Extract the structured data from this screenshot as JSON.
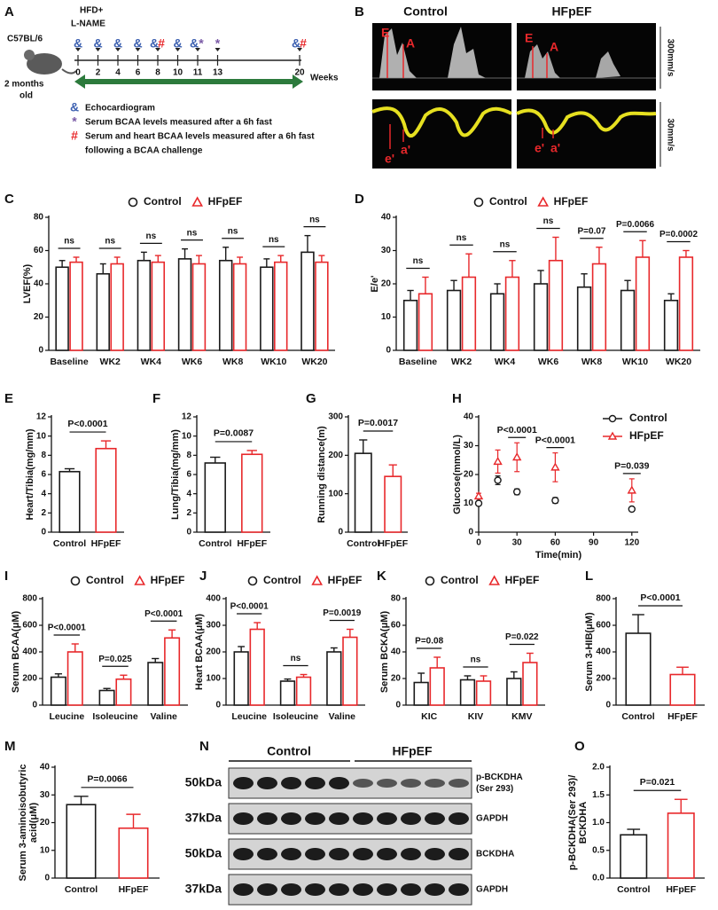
{
  "panels": {
    "A": {
      "label": "A",
      "treatment": [
        "HFD+",
        "L-NAME"
      ],
      "strain": "C57BL/6",
      "age": [
        "2 months",
        "old"
      ],
      "weeks": [
        0,
        2,
        4,
        6,
        8,
        10,
        11,
        13,
        20
      ],
      "axis_label": "Weeks",
      "timeline_symbols": [
        [
          "&"
        ],
        [
          "&"
        ],
        [
          "&"
        ],
        [
          "&"
        ],
        [
          "&",
          "#"
        ],
        [
          "&"
        ],
        [
          "&",
          "*"
        ],
        [
          "*"
        ],
        [
          "&",
          "#"
        ]
      ],
      "symbol_colors": {
        "&": "#3b5fb0",
        "*": "#7a5aa6",
        "#": "#e8282b"
      },
      "legend": [
        {
          "symbol": "&",
          "text": [
            "Echocardiogram"
          ]
        },
        {
          "symbol": "*",
          "text": [
            "Serum BCAA levels measured after a 6h fast"
          ]
        },
        {
          "symbol": "#",
          "text": [
            "Serum and heart BCAA levels measured after a 6h fast",
            "following a BCAA challenge"
          ]
        }
      ]
    },
    "B": {
      "label": "B",
      "columns": [
        "Control",
        "HFpEF"
      ],
      "scales": [
        "300mm/s",
        "30mm/s"
      ],
      "top_labels": [
        "E",
        "A"
      ],
      "bottom_labels": [
        "e'",
        "a'"
      ]
    },
    "N": {
      "label": "N",
      "groups": [
        "Control",
        "HFpEF"
      ],
      "rows": [
        {
          "size": "50kDa",
          "name": [
            "p-BCKDHA",
            "(Ser 293)"
          ]
        },
        {
          "size": "37kDa",
          "name": [
            "GAPDH"
          ]
        },
        {
          "size": "50kDa",
          "name": [
            "BCKDHA"
          ]
        },
        {
          "size": "37kDa",
          "name": [
            "GAPDH"
          ]
        }
      ]
    }
  },
  "chart_data": [
    {
      "type": "bar",
      "label": "C",
      "ylabel": "LVEF(%)",
      "legend": "top",
      "categories": [
        "Baseline",
        "WK2",
        "WK4",
        "WK6",
        "WK8",
        "WK10",
        "WK20"
      ],
      "series": [
        {
          "name": "Control",
          "color": "#1a1a1a",
          "marker": "circle",
          "values": [
            50,
            46,
            54,
            55,
            54,
            50,
            59
          ],
          "errors": [
            4,
            6,
            5,
            6,
            8,
            5,
            10
          ]
        },
        {
          "name": "HFpEF",
          "color": "#e8282b",
          "marker": "triangle",
          "values": [
            53,
            52,
            53,
            52,
            52,
            53,
            53
          ],
          "errors": [
            3,
            4,
            4,
            5,
            4,
            4,
            4
          ]
        }
      ],
      "ylim": [
        0,
        80
      ],
      "yticks": [
        0,
        20,
        40,
        60,
        80
      ],
      "annotations": [
        "ns",
        "ns",
        "ns",
        "ns",
        "ns",
        "ns",
        "ns"
      ]
    },
    {
      "type": "bar",
      "label": "D",
      "ylabel": "E/e'",
      "legend": "top",
      "categories": [
        "Baseline",
        "WK2",
        "WK4",
        "WK6",
        "WK8",
        "WK10",
        "WK20"
      ],
      "series": [
        {
          "name": "Control",
          "color": "#1a1a1a",
          "marker": "circle",
          "values": [
            15,
            18,
            17,
            20,
            19,
            18,
            15
          ],
          "errors": [
            3,
            3,
            3,
            4,
            4,
            3,
            2
          ]
        },
        {
          "name": "HFpEF",
          "color": "#e8282b",
          "marker": "triangle",
          "values": [
            17,
            22,
            22,
            27,
            26,
            28,
            28
          ],
          "errors": [
            5,
            7,
            5,
            7,
            5,
            5,
            2
          ]
        }
      ],
      "ylim": [
        0,
        40
      ],
      "yticks": [
        0,
        10,
        20,
        30,
        40
      ],
      "annotations": [
        "ns",
        "ns",
        "ns",
        "ns",
        "P=0.07",
        "P=0.0066",
        "P=0.0002"
      ]
    },
    {
      "type": "bar",
      "label": "E",
      "ylabel": "Heart/Tibia(mg/mm)",
      "categories": [
        "Control",
        "HFpEF"
      ],
      "values": [
        6.3,
        8.7
      ],
      "errors": [
        0.3,
        0.8
      ],
      "colors": [
        "#1a1a1a",
        "#e8282b"
      ],
      "ylim": [
        0,
        12
      ],
      "yticks": [
        0,
        2,
        4,
        6,
        8,
        10,
        12
      ],
      "annotations": [
        "P<0.0001"
      ]
    },
    {
      "type": "bar",
      "label": "F",
      "ylabel": "Lung/Tibia(mg/mm)",
      "categories": [
        "Control",
        "HFpEF"
      ],
      "values": [
        7.2,
        8.1
      ],
      "errors": [
        0.6,
        0.4
      ],
      "colors": [
        "#1a1a1a",
        "#e8282b"
      ],
      "ylim": [
        0,
        12
      ],
      "yticks": [
        0,
        2,
        4,
        6,
        8,
        10,
        12
      ],
      "annotations": [
        "P=0.0087"
      ]
    },
    {
      "type": "bar",
      "label": "G",
      "ylabel": "Running distance(m)",
      "categories": [
        "Control",
        "HFpEF"
      ],
      "values": [
        205,
        145
      ],
      "errors": [
        35,
        30
      ],
      "colors": [
        "#1a1a1a",
        "#e8282b"
      ],
      "ylim": [
        0,
        300
      ],
      "yticks": [
        0,
        100,
        200,
        300
      ],
      "annotations": [
        "P=0.0017"
      ]
    },
    {
      "type": "line",
      "label": "H",
      "ylabel": "Glucose(mmol/L)",
      "xlabel": "Time(min)",
      "legend": "upper right",
      "x": [
        0,
        15,
        30,
        60,
        120
      ],
      "series": [
        {
          "name": "Control",
          "color": "#1a1a1a",
          "marker": "circle",
          "values": [
            10,
            18,
            14,
            11,
            8
          ],
          "errors": [
            0.5,
            1.5,
            1,
            1,
            0.7
          ]
        },
        {
          "name": "HFpEF",
          "color": "#e8282b",
          "marker": "triangle",
          "values": [
            12.5,
            24.5,
            26,
            22.5,
            14.5
          ],
          "errors": [
            1,
            4,
            5,
            5,
            4
          ]
        }
      ],
      "xlim": [
        0,
        125
      ],
      "xticks": [
        0,
        30,
        60,
        90,
        120
      ],
      "ylim": [
        0,
        40
      ],
      "yticks": [
        0,
        10,
        20,
        30,
        40
      ],
      "annotations": [
        {
          "text": "P<0.0001",
          "x": 30
        },
        {
          "text": "P<0.0001",
          "x": 60
        },
        {
          "text": "P=0.039",
          "x": 120
        }
      ]
    },
    {
      "type": "bar",
      "label": "I",
      "ylabel": "Serum BCAA(μM)",
      "legend": "top",
      "categories": [
        "Leucine",
        "Isoleucine",
        "Valine"
      ],
      "series": [
        {
          "name": "Control",
          "color": "#1a1a1a",
          "marker": "circle",
          "values": [
            210,
            110,
            320
          ],
          "errors": [
            25,
            15,
            30
          ]
        },
        {
          "name": "HFpEF",
          "color": "#e8282b",
          "marker": "triangle",
          "values": [
            400,
            195,
            505
          ],
          "errors": [
            60,
            30,
            60
          ]
        }
      ],
      "ylim": [
        0,
        800
      ],
      "yticks": [
        0,
        200,
        400,
        600,
        800
      ],
      "annotations": [
        "P<0.0001",
        "P=0.025",
        "P<0.0001"
      ]
    },
    {
      "type": "bar",
      "label": "J",
      "ylabel": "Heart BCAA(μM)",
      "legend": "top",
      "categories": [
        "Leucine",
        "Isoleucine",
        "Valine"
      ],
      "series": [
        {
          "name": "Control",
          "color": "#1a1a1a",
          "marker": "circle",
          "values": [
            200,
            90,
            200
          ],
          "errors": [
            20,
            8,
            15
          ]
        },
        {
          "name": "HFpEF",
          "color": "#e8282b",
          "marker": "triangle",
          "values": [
            285,
            105,
            255
          ],
          "errors": [
            25,
            10,
            30
          ]
        }
      ],
      "ylim": [
        0,
        400
      ],
      "yticks": [
        0,
        100,
        200,
        300,
        400
      ],
      "annotations": [
        "P<0.0001",
        "ns",
        "P=0.0019"
      ]
    },
    {
      "type": "bar",
      "label": "K",
      "ylabel": "Serum BCKA(μM)",
      "legend": "top",
      "categories": [
        "KIC",
        "KIV",
        "KMV"
      ],
      "series": [
        {
          "name": "Control",
          "color": "#1a1a1a",
          "marker": "circle",
          "values": [
            17,
            19,
            20
          ],
          "errors": [
            7,
            3,
            5
          ]
        },
        {
          "name": "HFpEF",
          "color": "#e8282b",
          "marker": "triangle",
          "values": [
            28,
            18,
            32
          ],
          "errors": [
            8,
            4,
            7
          ]
        }
      ],
      "ylim": [
        0,
        80
      ],
      "yticks": [
        0,
        20,
        40,
        60,
        80
      ],
      "annotations": [
        "P=0.08",
        "ns",
        "P=0.022"
      ]
    },
    {
      "type": "bar",
      "label": "L",
      "ylabel": "Serum 3-HIB(μM)",
      "categories": [
        "Control",
        "HFpEF"
      ],
      "values": [
        540,
        230
      ],
      "errors": [
        140,
        55
      ],
      "colors": [
        "#1a1a1a",
        "#e8282b"
      ],
      "ylim": [
        0,
        800
      ],
      "yticks": [
        0,
        200,
        400,
        600,
        800
      ],
      "annotations": [
        "P<0.0001"
      ]
    },
    {
      "type": "bar",
      "label": "M",
      "ylabel": [
        "Serum 3-aminoisobutyric",
        "acid(μM)"
      ],
      "categories": [
        "Control",
        "HFpEF"
      ],
      "values": [
        26.5,
        18
      ],
      "errors": [
        3,
        5
      ],
      "colors": [
        "#1a1a1a",
        "#e8282b"
      ],
      "ylim": [
        0,
        40
      ],
      "yticks": [
        0,
        10,
        20,
        30,
        40
      ],
      "annotations": [
        "P=0.0066"
      ]
    },
    {
      "type": "bar",
      "label": "O",
      "ylabel": [
        "p-BCKDHA(Ser 293)/",
        "BCKDHA"
      ],
      "categories": [
        "Control",
        "HFpEF"
      ],
      "values": [
        0.78,
        1.17
      ],
      "errors": [
        0.1,
        0.25
      ],
      "colors": [
        "#1a1a1a",
        "#e8282b"
      ],
      "ylim": [
        0,
        2
      ],
      "yticks": [
        {
          "value": 0,
          "label": "0.0"
        },
        {
          "value": 0.5,
          "label": "0.5"
        },
        {
          "value": 1,
          "label": "1.0"
        },
        {
          "value": 1.5,
          "label": "1.5"
        },
        {
          "value": 2,
          "label": "2.0"
        }
      ],
      "annotations": [
        "P=0.021"
      ]
    }
  ]
}
